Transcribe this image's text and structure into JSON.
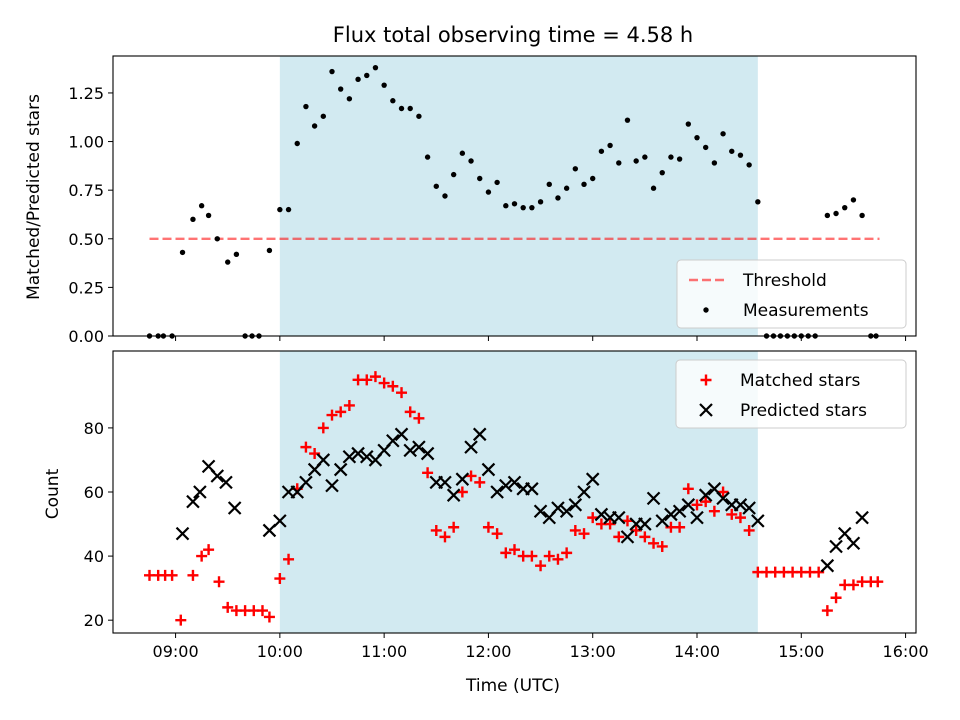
{
  "title": "Flux total observing time = 4.58 h",
  "colors": {
    "shade": "#add8e6",
    "threshold": "#ff0000",
    "measurements": "#000000",
    "matched": "#ff0000",
    "predicted": "#000000"
  },
  "chart_data": [
    {
      "type": "scatter",
      "ylabel": "Matched/Predicted stars",
      "ylim": [
        0,
        1.44
      ],
      "yticks": [
        0.0,
        0.25,
        0.5,
        0.75,
        1.0,
        1.25
      ],
      "ytick_labels": [
        "0.00",
        "0.25",
        "0.50",
        "0.75",
        "1.00",
        "1.25"
      ],
      "xlim": [
        "08:24",
        "16:06"
      ],
      "shaded_interval": [
        "10:00",
        "14:35"
      ],
      "legend_position": "lower right",
      "threshold": {
        "name": "Threshold",
        "value": 0.5,
        "x_range": [
          "08:45",
          "15:45"
        ],
        "style": "dashed"
      },
      "series": [
        {
          "name": "Measurements",
          "marker": "dot",
          "points": [
            [
              "08:45",
              0.0
            ],
            [
              "08:50",
              0.0
            ],
            [
              "08:53",
              0.0
            ],
            [
              "08:58",
              0.0
            ],
            [
              "09:04",
              0.43
            ],
            [
              "09:10",
              0.6
            ],
            [
              "09:15",
              0.67
            ],
            [
              "09:19",
              0.62
            ],
            [
              "09:24",
              0.5
            ],
            [
              "09:30",
              0.38
            ],
            [
              "09:35",
              0.42
            ],
            [
              "09:40",
              0.0
            ],
            [
              "09:44",
              0.0
            ],
            [
              "09:48",
              0.0
            ],
            [
              "09:54",
              0.44
            ],
            [
              "10:00",
              0.65
            ],
            [
              "10:05",
              0.65
            ],
            [
              "10:10",
              0.99
            ],
            [
              "10:15",
              1.18
            ],
            [
              "10:20",
              1.08
            ],
            [
              "10:25",
              1.13
            ],
            [
              "10:30",
              1.36
            ],
            [
              "10:35",
              1.27
            ],
            [
              "10:40",
              1.22
            ],
            [
              "10:45",
              1.32
            ],
            [
              "10:50",
              1.34
            ],
            [
              "10:55",
              1.38
            ],
            [
              "11:00",
              1.29
            ],
            [
              "11:05",
              1.21
            ],
            [
              "11:10",
              1.17
            ],
            [
              "11:15",
              1.17
            ],
            [
              "11:20",
              1.13
            ],
            [
              "11:25",
              0.92
            ],
            [
              "11:30",
              0.77
            ],
            [
              "11:35",
              0.72
            ],
            [
              "11:40",
              0.83
            ],
            [
              "11:45",
              0.94
            ],
            [
              "11:50",
              0.9
            ],
            [
              "11:55",
              0.81
            ],
            [
              "12:00",
              0.74
            ],
            [
              "12:05",
              0.79
            ],
            [
              "12:10",
              0.67
            ],
            [
              "12:15",
              0.68
            ],
            [
              "12:20",
              0.66
            ],
            [
              "12:25",
              0.66
            ],
            [
              "12:30",
              0.69
            ],
            [
              "12:35",
              0.78
            ],
            [
              "12:40",
              0.71
            ],
            [
              "12:45",
              0.76
            ],
            [
              "12:50",
              0.86
            ],
            [
              "12:55",
              0.78
            ],
            [
              "13:00",
              0.81
            ],
            [
              "13:05",
              0.95
            ],
            [
              "13:10",
              0.98
            ],
            [
              "13:15",
              0.89
            ],
            [
              "13:20",
              1.11
            ],
            [
              "13:25",
              0.9
            ],
            [
              "13:30",
              0.92
            ],
            [
              "13:35",
              0.76
            ],
            [
              "13:40",
              0.84
            ],
            [
              "13:45",
              0.92
            ],
            [
              "13:50",
              0.91
            ],
            [
              "13:55",
              1.09
            ],
            [
              "14:00",
              1.02
            ],
            [
              "14:05",
              0.97
            ],
            [
              "14:10",
              0.89
            ],
            [
              "14:15",
              1.04
            ],
            [
              "14:20",
              0.95
            ],
            [
              "14:25",
              0.93
            ],
            [
              "14:30",
              0.88
            ],
            [
              "14:35",
              0.69
            ],
            [
              "14:40",
              0.0
            ],
            [
              "14:44",
              0.0
            ],
            [
              "14:48",
              0.0
            ],
            [
              "14:52",
              0.0
            ],
            [
              "14:56",
              0.0
            ],
            [
              "15:00",
              0.0
            ],
            [
              "15:04",
              0.0
            ],
            [
              "15:08",
              0.0
            ],
            [
              "15:15",
              0.62
            ],
            [
              "15:20",
              0.63
            ],
            [
              "15:25",
              0.66
            ],
            [
              "15:30",
              0.7
            ],
            [
              "15:35",
              0.62
            ],
            [
              "15:40",
              0.0
            ],
            [
              "15:43",
              0.0
            ]
          ]
        }
      ]
    },
    {
      "type": "scatter",
      "ylabel": "Count",
      "xlabel": "Time (UTC)",
      "ylim": [
        16,
        104
      ],
      "yticks": [
        20,
        40,
        60,
        80
      ],
      "ytick_labels": [
        "20",
        "40",
        "60",
        "80"
      ],
      "xlim": [
        "08:24",
        "16:06"
      ],
      "xticks": [
        "09:00",
        "10:00",
        "11:00",
        "12:00",
        "13:00",
        "14:00",
        "15:00",
        "16:00"
      ],
      "shaded_interval": [
        "10:00",
        "14:35"
      ],
      "legend_position": "upper right",
      "series": [
        {
          "name": "Matched stars",
          "marker": "plus",
          "points": [
            [
              "08:45",
              34
            ],
            [
              "08:50",
              34
            ],
            [
              "08:54",
              34
            ],
            [
              "08:58",
              34
            ],
            [
              "09:03",
              20
            ],
            [
              "09:10",
              34
            ],
            [
              "09:15",
              40
            ],
            [
              "09:19",
              42
            ],
            [
              "09:25",
              32
            ],
            [
              "09:30",
              24
            ],
            [
              "09:35",
              23
            ],
            [
              "09:40",
              23
            ],
            [
              "09:45",
              23
            ],
            [
              "09:50",
              23
            ],
            [
              "09:54",
              21
            ],
            [
              "10:00",
              33
            ],
            [
              "10:05",
              39
            ],
            [
              "10:10",
              61
            ],
            [
              "10:15",
              74
            ],
            [
              "10:20",
              72
            ],
            [
              "10:25",
              80
            ],
            [
              "10:30",
              84
            ],
            [
              "10:35",
              85
            ],
            [
              "10:40",
              87
            ],
            [
              "10:45",
              95
            ],
            [
              "10:50",
              95
            ],
            [
              "10:55",
              96
            ],
            [
              "11:00",
              94
            ],
            [
              "11:05",
              93
            ],
            [
              "11:10",
              91
            ],
            [
              "11:15",
              85
            ],
            [
              "11:20",
              83
            ],
            [
              "11:25",
              66
            ],
            [
              "11:30",
              48
            ],
            [
              "11:35",
              46
            ],
            [
              "11:40",
              49
            ],
            [
              "11:45",
              60
            ],
            [
              "11:50",
              65
            ],
            [
              "11:55",
              63
            ],
            [
              "12:00",
              49
            ],
            [
              "12:05",
              47
            ],
            [
              "12:10",
              41
            ],
            [
              "12:15",
              42
            ],
            [
              "12:20",
              40
            ],
            [
              "12:25",
              40
            ],
            [
              "12:30",
              37
            ],
            [
              "12:35",
              40
            ],
            [
              "12:40",
              39
            ],
            [
              "12:45",
              41
            ],
            [
              "12:50",
              48
            ],
            [
              "12:55",
              47
            ],
            [
              "13:00",
              52
            ],
            [
              "13:05",
              50
            ],
            [
              "13:10",
              50
            ],
            [
              "13:15",
              46
            ],
            [
              "13:20",
              51
            ],
            [
              "13:25",
              48
            ],
            [
              "13:30",
              46
            ],
            [
              "13:35",
              44
            ],
            [
              "13:40",
              43
            ],
            [
              "13:45",
              49
            ],
            [
              "13:50",
              49
            ],
            [
              "13:55",
              61
            ],
            [
              "14:00",
              56
            ],
            [
              "14:05",
              57
            ],
            [
              "14:10",
              54
            ],
            [
              "14:15",
              60
            ],
            [
              "14:20",
              53
            ],
            [
              "14:25",
              52
            ],
            [
              "14:30",
              48
            ],
            [
              "14:35",
              35
            ],
            [
              "14:40",
              35
            ],
            [
              "14:45",
              35
            ],
            [
              "14:50",
              35
            ],
            [
              "14:55",
              35
            ],
            [
              "15:00",
              35
            ],
            [
              "15:05",
              35
            ],
            [
              "15:10",
              35
            ],
            [
              "15:15",
              23
            ],
            [
              "15:20",
              27
            ],
            [
              "15:25",
              31
            ],
            [
              "15:30",
              31
            ],
            [
              "15:35",
              32
            ],
            [
              "15:40",
              32
            ],
            [
              "15:44",
              32
            ]
          ]
        },
        {
          "name": "Predicted stars",
          "marker": "x",
          "points": [
            [
              "09:04",
              47
            ],
            [
              "09:10",
              57
            ],
            [
              "09:14",
              60
            ],
            [
              "09:19",
              68
            ],
            [
              "09:24",
              65
            ],
            [
              "09:29",
              63
            ],
            [
              "09:34",
              55
            ],
            [
              "09:54",
              48
            ],
            [
              "10:00",
              51
            ],
            [
              "10:05",
              60
            ],
            [
              "10:10",
              60
            ],
            [
              "10:15",
              63
            ],
            [
              "10:20",
              67
            ],
            [
              "10:25",
              70
            ],
            [
              "10:30",
              62
            ],
            [
              "10:35",
              67
            ],
            [
              "10:40",
              71
            ],
            [
              "10:45",
              72
            ],
            [
              "10:50",
              71
            ],
            [
              "10:55",
              70
            ],
            [
              "11:00",
              73
            ],
            [
              "11:05",
              76
            ],
            [
              "11:10",
              78
            ],
            [
              "11:15",
              73
            ],
            [
              "11:20",
              74
            ],
            [
              "11:25",
              72
            ],
            [
              "11:30",
              63
            ],
            [
              "11:35",
              63
            ],
            [
              "11:40",
              59
            ],
            [
              "11:45",
              64
            ],
            [
              "11:50",
              74
            ],
            [
              "11:55",
              78
            ],
            [
              "12:00",
              67
            ],
            [
              "12:05",
              60
            ],
            [
              "12:10",
              62
            ],
            [
              "12:15",
              63
            ],
            [
              "12:20",
              61
            ],
            [
              "12:25",
              61
            ],
            [
              "12:30",
              54
            ],
            [
              "12:35",
              52
            ],
            [
              "12:40",
              55
            ],
            [
              "12:45",
              54
            ],
            [
              "12:50",
              56
            ],
            [
              "12:55",
              60
            ],
            [
              "13:00",
              64
            ],
            [
              "13:05",
              53
            ],
            [
              "13:10",
              52
            ],
            [
              "13:15",
              52
            ],
            [
              "13:20",
              46
            ],
            [
              "13:25",
              50
            ],
            [
              "13:30",
              50
            ],
            [
              "13:35",
              58
            ],
            [
              "13:40",
              51
            ],
            [
              "13:45",
              53
            ],
            [
              "13:50",
              54
            ],
            [
              "13:55",
              56
            ],
            [
              "14:00",
              52
            ],
            [
              "14:05",
              59
            ],
            [
              "14:10",
              61
            ],
            [
              "14:15",
              58
            ],
            [
              "14:20",
              56
            ],
            [
              "14:25",
              56
            ],
            [
              "14:30",
              55
            ],
            [
              "14:35",
              51
            ],
            [
              "15:15",
              37
            ],
            [
              "15:20",
              43
            ],
            [
              "15:25",
              47
            ],
            [
              "15:30",
              44
            ],
            [
              "15:35",
              52
            ]
          ]
        }
      ]
    }
  ]
}
